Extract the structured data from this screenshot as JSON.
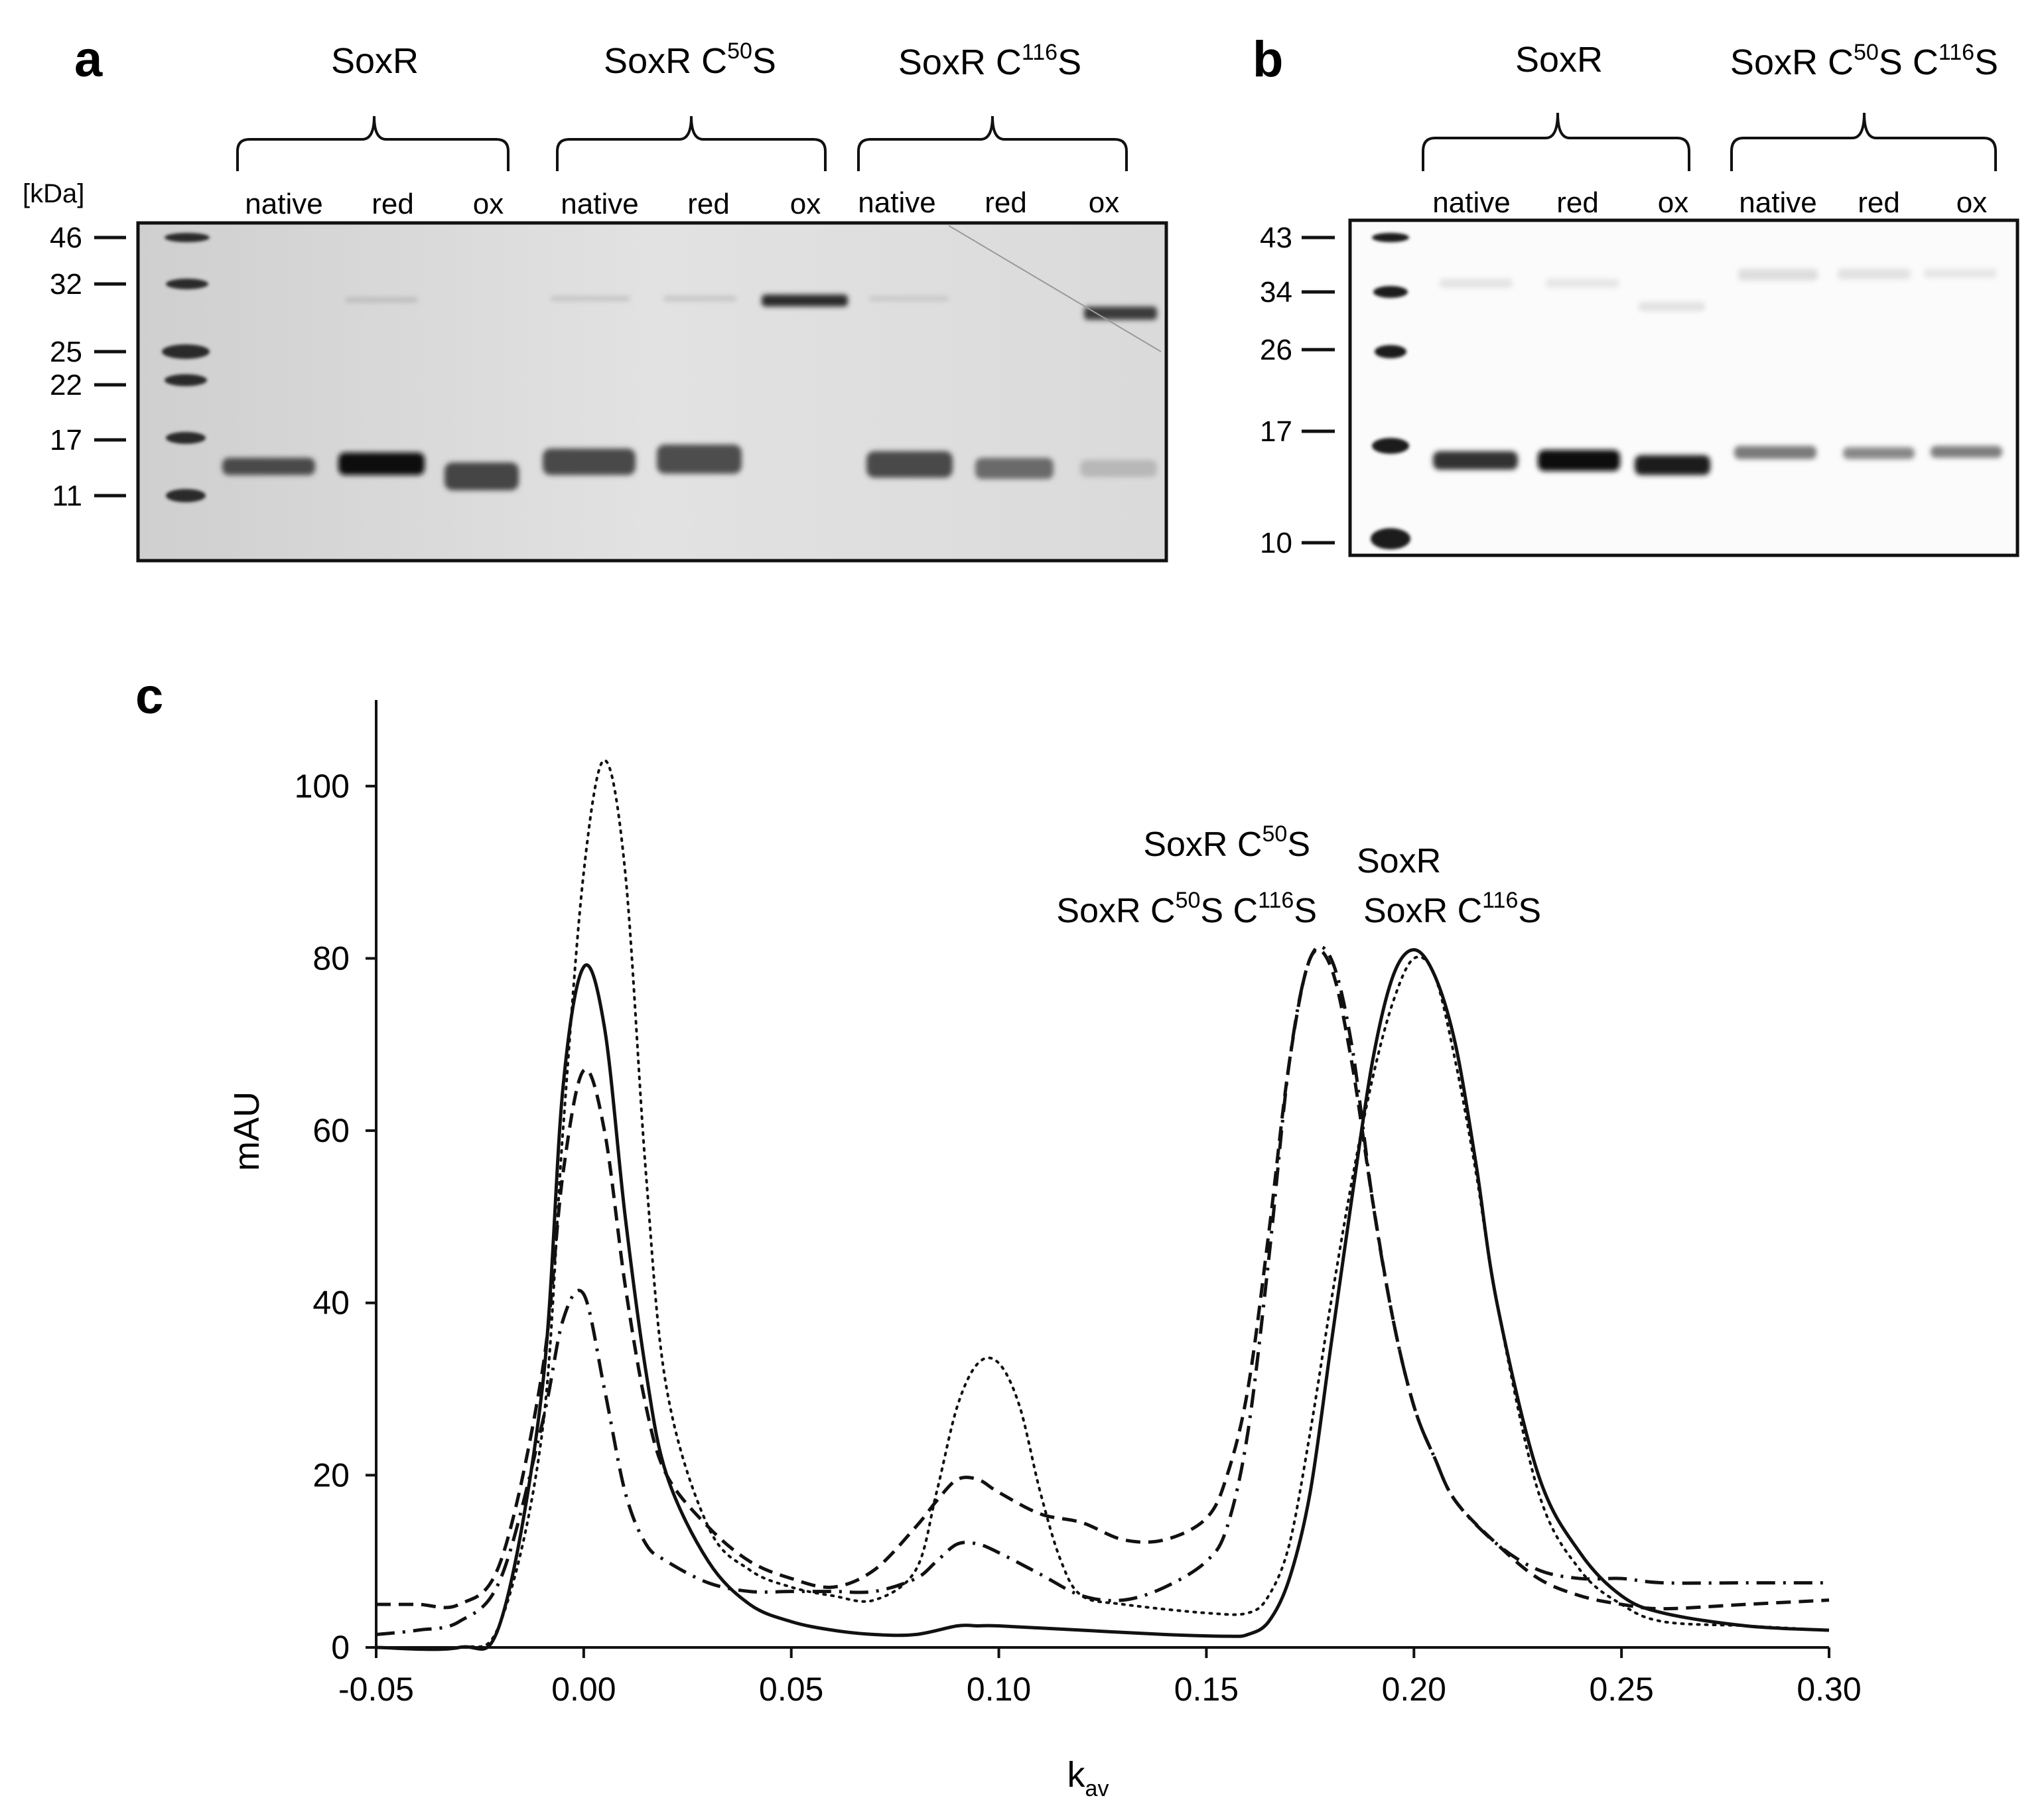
{
  "panel_a": {
    "letter": "a",
    "mw_unit": "[kDa]",
    "groups": [
      {
        "name": "SoxR",
        "sup": "",
        "after": "",
        "sup2": "",
        "after2": ""
      },
      {
        "name": "SoxR C",
        "sup": "50",
        "after": "S",
        "sup2": "",
        "after2": ""
      },
      {
        "name": "SoxR C",
        "sup": "116",
        "after": "S",
        "sup2": "",
        "after2": ""
      }
    ],
    "lanes": [
      "native",
      "red",
      "ox",
      "native",
      "red",
      "ox",
      "native",
      "red",
      "ox"
    ],
    "markers": [
      "46",
      "32",
      "25",
      "22",
      "17",
      "11"
    ]
  },
  "panel_b": {
    "letter": "b",
    "groups": [
      {
        "name": "SoxR",
        "sup": "",
        "after": "",
        "sup2": "",
        "after2": ""
      },
      {
        "name": "SoxR C",
        "sup": "50",
        "after": "S C",
        "sup2": "116",
        "after2": "S"
      }
    ],
    "lanes": [
      "native",
      "red",
      "ox",
      "native",
      "red",
      "ox"
    ],
    "markers": [
      "43",
      "34",
      "26",
      "17",
      "10"
    ]
  },
  "panel_c": {
    "letter": "c",
    "annotations": [
      {
        "name": "SoxR C",
        "sup": "50",
        "after": "S",
        "sup2": "",
        "after2": ""
      },
      {
        "name": "SoxR C",
        "sup": "50",
        "after": "S C",
        "sup2": "116",
        "after2": "S"
      },
      {
        "name": "SoxR",
        "sup": "",
        "after": "",
        "sup2": "",
        "after2": ""
      },
      {
        "name": "SoxR C",
        "sup": "116",
        "after": "S",
        "sup2": "",
        "after2": ""
      }
    ]
  },
  "chart_data": {
    "type": "line",
    "title": "",
    "xlabel": "k",
    "xlabel_sub": "av",
    "ylabel": "mAU",
    "xlim": [
      -0.05,
      0.3
    ],
    "ylim": [
      0,
      110
    ],
    "xticks": [
      "-0.05",
      "0.00",
      "0.05",
      "0.10",
      "0.15",
      "0.20",
      "0.25",
      "0.30"
    ],
    "xtick_values": [
      -0.05,
      0.0,
      0.05,
      0.1,
      0.15,
      0.2,
      0.25,
      0.3
    ],
    "yticks": [
      "0",
      "20",
      "40",
      "60",
      "80",
      "100"
    ],
    "ytick_values": [
      0,
      20,
      40,
      60,
      80,
      100
    ],
    "grid": false,
    "legend": "none",
    "series": [
      {
        "style": "solid",
        "x": [
          -0.05,
          -0.03,
          -0.02,
          -0.01,
          -0.005,
          0.0,
          0.005,
          0.01,
          0.015,
          0.02,
          0.03,
          0.04,
          0.05,
          0.06,
          0.07,
          0.08,
          0.09,
          0.095,
          0.1,
          0.12,
          0.14,
          0.155,
          0.16,
          0.165,
          0.17,
          0.175,
          0.18,
          0.185,
          0.19,
          0.195,
          0.2,
          0.205,
          0.21,
          0.215,
          0.22,
          0.23,
          0.24,
          0.25,
          0.26,
          0.28,
          0.3
        ],
        "y": [
          0,
          0,
          3,
          30,
          65,
          79,
          72,
          50,
          32,
          20,
          10,
          5,
          3,
          2,
          1.5,
          1.5,
          2.5,
          2.5,
          2.5,
          2,
          1.5,
          1.3,
          1.5,
          3,
          8,
          18,
          35,
          52,
          68,
          78,
          81,
          78,
          70,
          56,
          40,
          20,
          11,
          6,
          4,
          2.5,
          2
        ]
      },
      {
        "style": "dotted",
        "x": [
          -0.05,
          -0.03,
          -0.02,
          -0.01,
          -0.005,
          0.0,
          0.005,
          0.01,
          0.015,
          0.02,
          0.03,
          0.04,
          0.05,
          0.06,
          0.07,
          0.08,
          0.085,
          0.09,
          0.095,
          0.1,
          0.105,
          0.11,
          0.115,
          0.12,
          0.13,
          0.15,
          0.16,
          0.165,
          0.17,
          0.175,
          0.18,
          0.185,
          0.19,
          0.195,
          0.2,
          0.205,
          0.21,
          0.215,
          0.22,
          0.23,
          0.24,
          0.25,
          0.26,
          0.28,
          0.3
        ],
        "y": [
          0,
          0,
          3,
          25,
          60,
          90,
          103,
          90,
          55,
          30,
          14,
          9,
          7,
          6,
          5.5,
          9,
          18,
          28,
          33,
          33,
          28,
          18,
          10,
          6,
          5,
          4,
          4,
          6,
          12,
          25,
          40,
          54,
          66,
          75,
          80,
          78,
          68,
          55,
          40,
          18,
          9,
          5,
          3,
          2.5,
          2
        ]
      },
      {
        "style": "dashed",
        "x": [
          -0.05,
          -0.04,
          -0.03,
          -0.02,
          -0.01,
          -0.005,
          0.0,
          0.005,
          0.01,
          0.015,
          0.02,
          0.03,
          0.04,
          0.05,
          0.06,
          0.07,
          0.08,
          0.085,
          0.09,
          0.095,
          0.1,
          0.11,
          0.12,
          0.13,
          0.14,
          0.15,
          0.155,
          0.16,
          0.165,
          0.17,
          0.175,
          0.18,
          0.185,
          0.19,
          0.195,
          0.2,
          0.205,
          0.21,
          0.22,
          0.23,
          0.24,
          0.25,
          0.26,
          0.28,
          0.3
        ],
        "y": [
          5,
          5,
          5,
          10,
          32,
          55,
          67,
          60,
          42,
          28,
          20,
          14,
          10,
          8,
          7,
          9,
          14,
          17,
          19.5,
          19.5,
          18,
          15.5,
          14.5,
          12.5,
          12.5,
          15,
          20,
          30,
          48,
          68,
          80,
          79,
          68,
          52,
          38,
          28,
          22,
          17,
          12,
          8,
          6,
          5,
          4.5,
          5,
          5.5
        ]
      },
      {
        "style": "dashdot",
        "x": [
          -0.05,
          -0.04,
          -0.03,
          -0.02,
          -0.01,
          -0.005,
          0.0,
          0.005,
          0.01,
          0.015,
          0.02,
          0.03,
          0.04,
          0.05,
          0.06,
          0.07,
          0.08,
          0.085,
          0.09,
          0.095,
          0.1,
          0.11,
          0.12,
          0.13,
          0.14,
          0.15,
          0.155,
          0.16,
          0.165,
          0.17,
          0.175,
          0.18,
          0.185,
          0.19,
          0.195,
          0.2,
          0.205,
          0.21,
          0.22,
          0.23,
          0.24,
          0.25,
          0.26,
          0.28,
          0.3
        ],
        "y": [
          1.5,
          2,
          3,
          8,
          26,
          38,
          41,
          30,
          18,
          12,
          10,
          7.5,
          6.5,
          6.5,
          6.5,
          6.5,
          8,
          10,
          12,
          12,
          11,
          8.5,
          6,
          5.5,
          7,
          10,
          14,
          25,
          45,
          68,
          80,
          80,
          70,
          52,
          38,
          28,
          22,
          17,
          12,
          9,
          8,
          8,
          7.5,
          7.5,
          7.5
        ]
      }
    ]
  }
}
